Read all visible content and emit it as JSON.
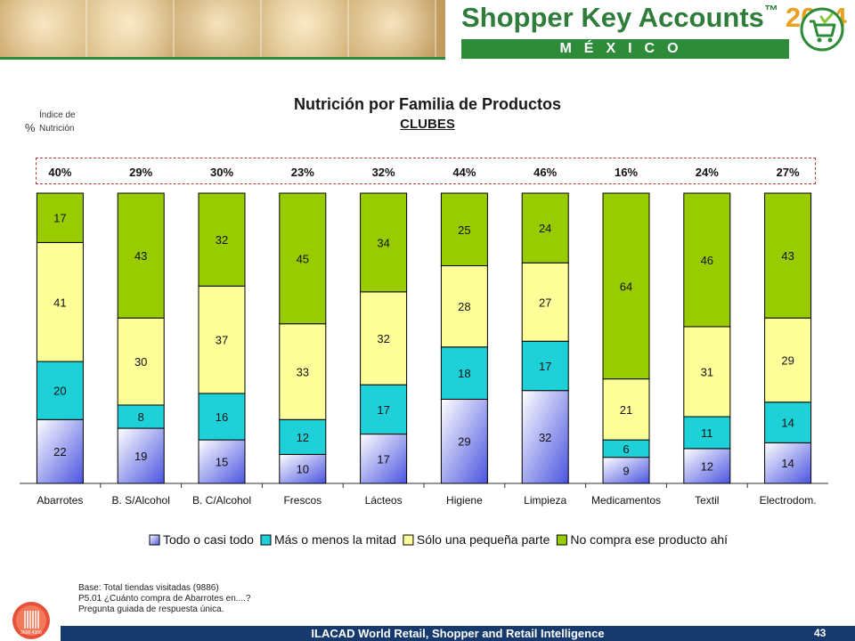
{
  "header": {
    "brand": "Shopper Key Accounts",
    "trademark": "™",
    "year": "2014",
    "country": "MÉXICO"
  },
  "chart_data": {
    "type": "bar",
    "stacked": true,
    "title": "Nutrición por Familia de Productos",
    "subtitle": "CLUBES",
    "ylabel": "%",
    "index_label": "Índice de\nNutrición",
    "categories": [
      "Abarrotes",
      "B. S/Alcohol",
      "B. C/Alcohol",
      "Frescos",
      "Lácteos",
      "Higiene",
      "Limpieza",
      "Medicamentos",
      "Textil",
      "Electrodom."
    ],
    "index_values": [
      "40%",
      "29%",
      "30%",
      "23%",
      "32%",
      "44%",
      "46%",
      "16%",
      "24%",
      "27%"
    ],
    "series": [
      {
        "name": "Todo o casi todo",
        "color": "#4b55e0",
        "values": [
          22,
          19,
          15,
          10,
          17,
          29,
          32,
          9,
          12,
          14
        ]
      },
      {
        "name": "Más o menos la mitad",
        "color": "#1ed0d8",
        "values": [
          20,
          8,
          16,
          12,
          17,
          18,
          17,
          6,
          11,
          14
        ]
      },
      {
        "name": "Sólo una pequeña parte",
        "color": "#ffff99",
        "values": [
          41,
          30,
          37,
          33,
          32,
          28,
          27,
          21,
          31,
          29
        ]
      },
      {
        "name": "No compra ese producto ahí",
        "color": "#99cc00",
        "values": [
          17,
          43,
          32,
          45,
          34,
          25,
          24,
          64,
          46,
          43
        ]
      }
    ],
    "ylim": [
      0,
      100
    ],
    "grid": false,
    "legend_position": "bottom"
  },
  "footnote": {
    "lines": [
      "Base: Total tiendas visitadas (9886)",
      "P5.01 ¿Cuánto compra de Abarrotes en....?",
      "Pregunta guiada de respuesta única."
    ]
  },
  "footer": {
    "text": "ILACAD World Retail, Shopper and Retail Intelligence",
    "page_number": "43",
    "seal_text": "3600  4300"
  }
}
